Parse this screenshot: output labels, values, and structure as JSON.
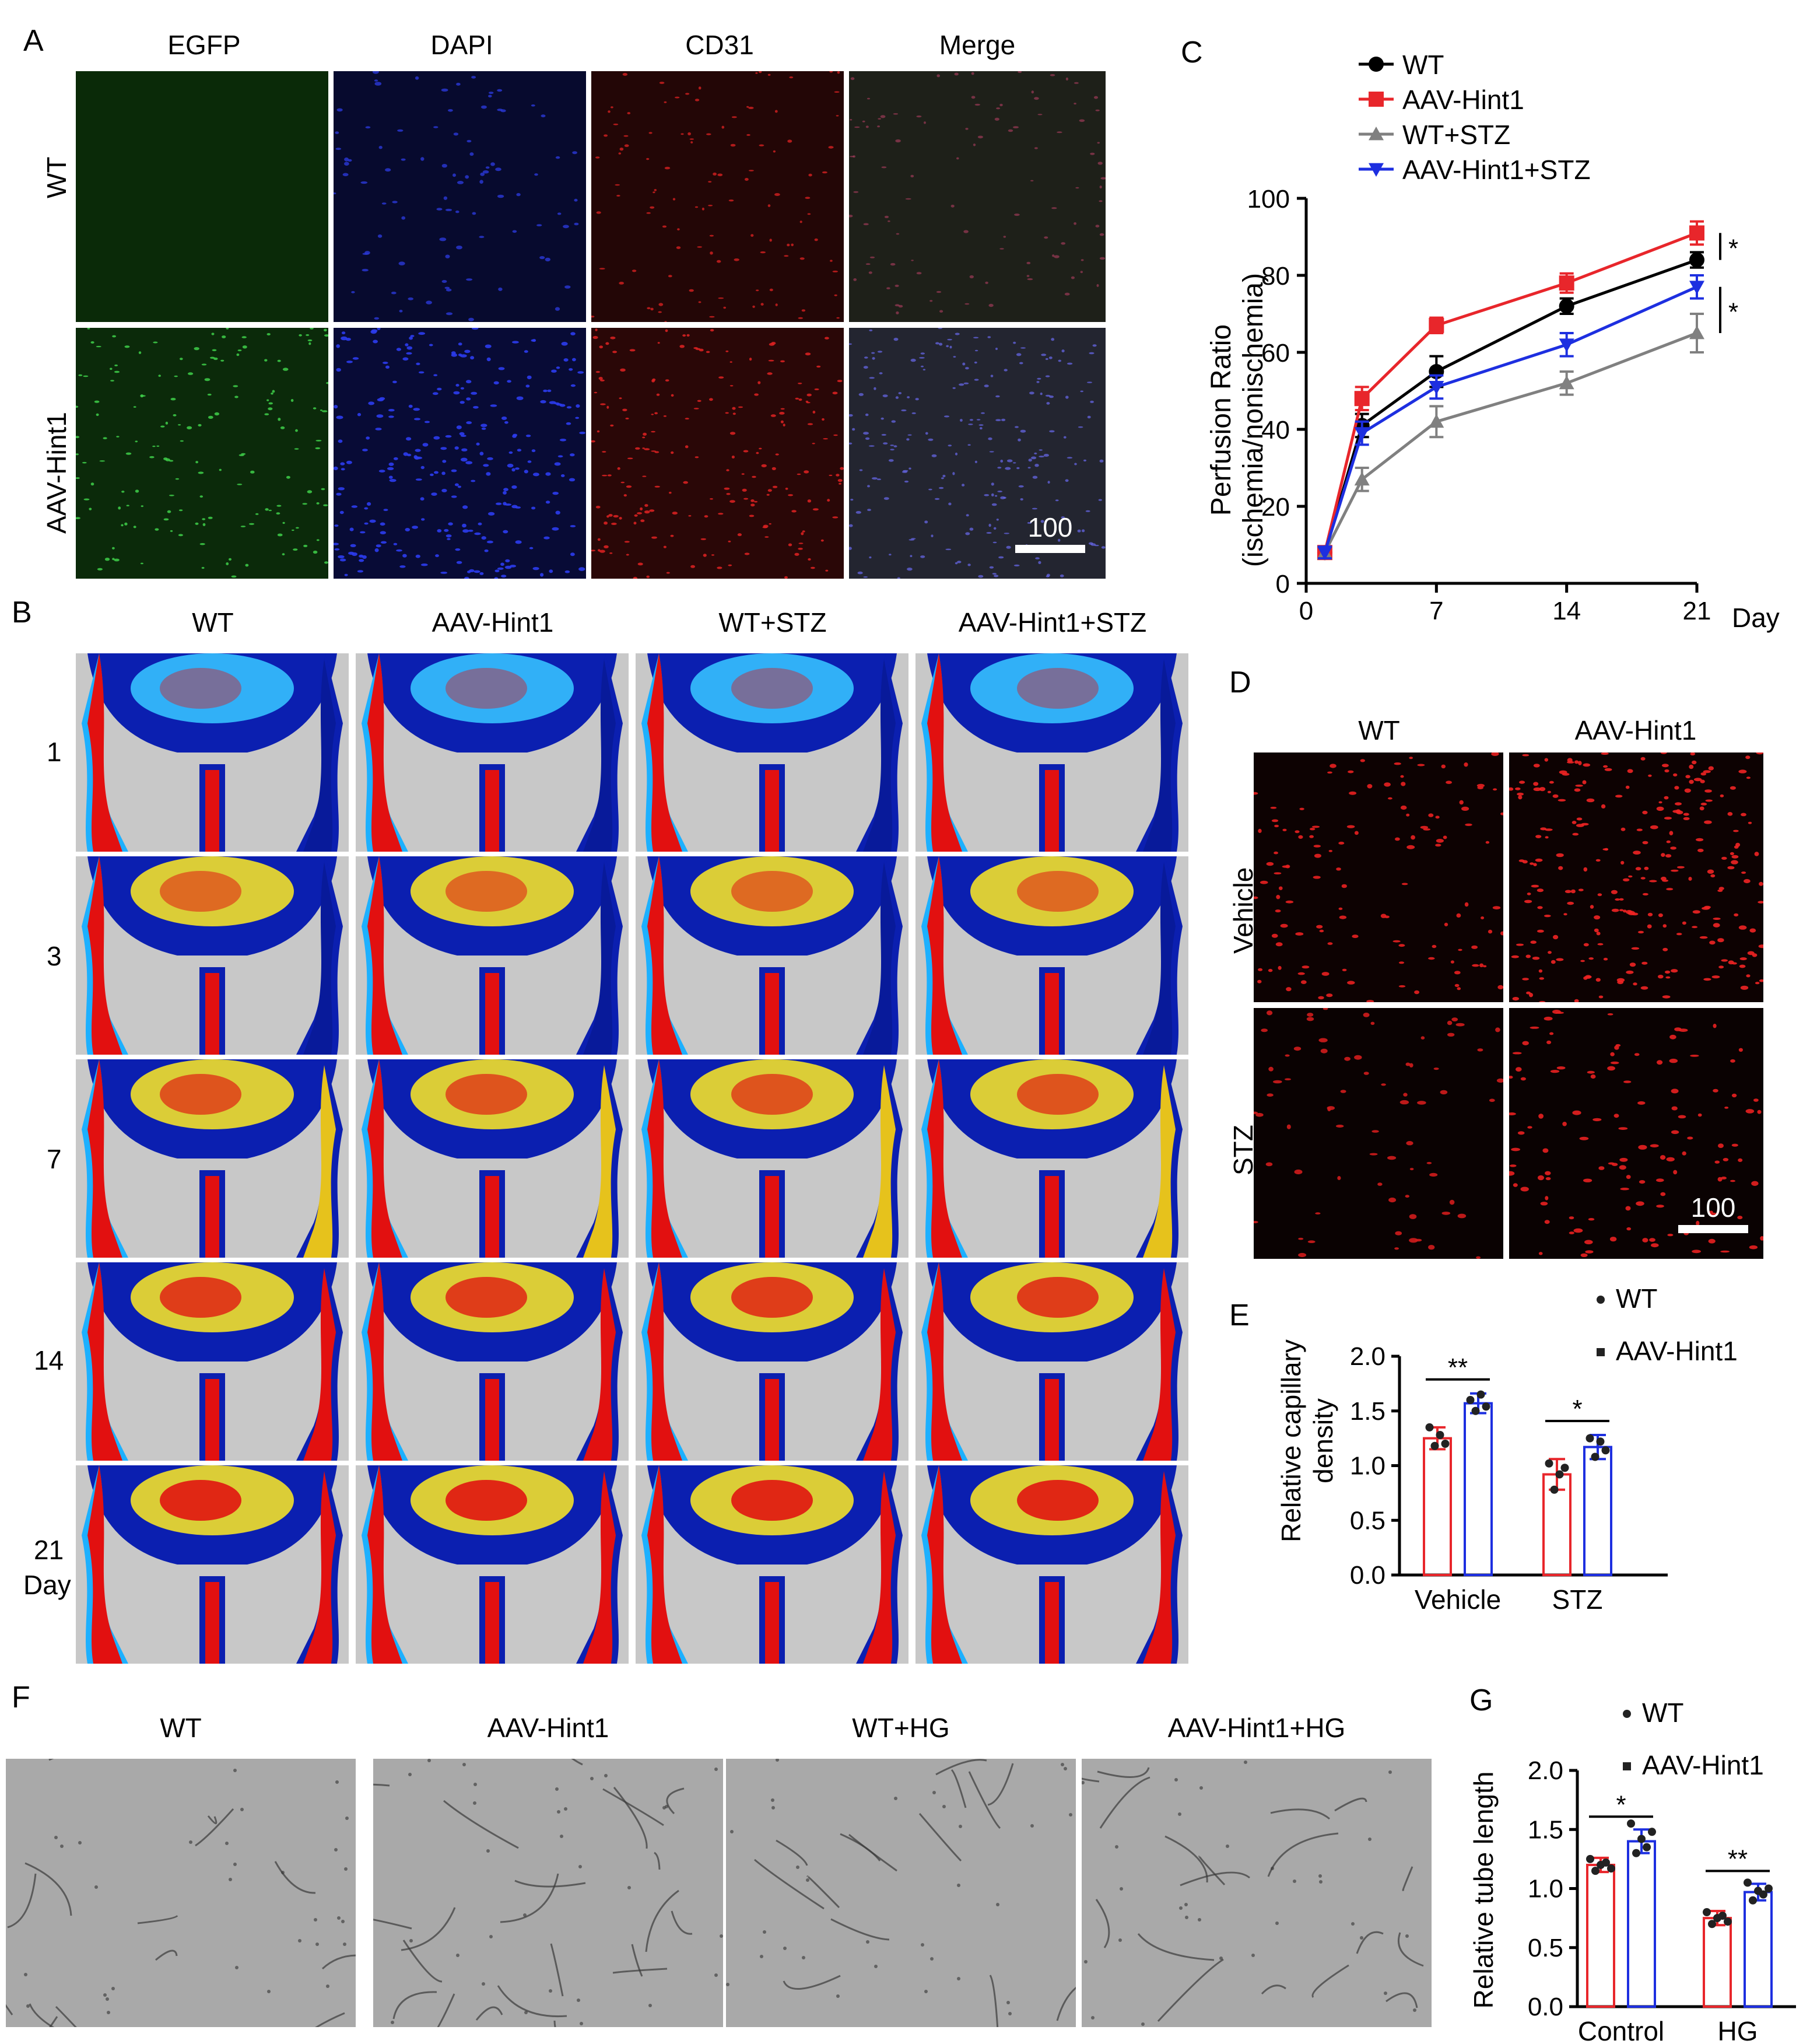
{
  "panels": {
    "a": "A",
    "b": "B",
    "c": "C",
    "d": "D",
    "e": "E",
    "f": "F",
    "g": "G"
  },
  "panel_a": {
    "columns": [
      "EGFP",
      "DAPI",
      "CD31",
      "Merge"
    ],
    "rows": [
      "WT",
      "AAV-Hint1"
    ],
    "scale_bar": "100",
    "colors": {
      "egfp": "#0a2a08",
      "dapi": "#070a2e",
      "cd31": "#230606",
      "merge": "#1c1c1c"
    }
  },
  "panel_b": {
    "columns": [
      "WT",
      "AAV-Hint1",
      "WT+STZ",
      "AAV-Hint1+STZ"
    ],
    "rows": [
      "1",
      "3",
      "7",
      "14",
      "21"
    ],
    "day_label": "Day"
  },
  "panel_d": {
    "columns": [
      "WT",
      "AAV-Hint1"
    ],
    "rows": [
      "Vehicle",
      "STZ"
    ],
    "scale_bar": "100"
  },
  "panel_f": {
    "columns": [
      "WT",
      "AAV-Hint1",
      "WT+HG",
      "AAV-Hint1+HG"
    ]
  },
  "chart_data": [
    {
      "id": "C",
      "type": "line",
      "ylabel": "Perfusion Ratio",
      "ylabel2": "(ischemia/nonischemia)",
      "xlabel": "Day",
      "x": [
        1,
        3,
        7,
        14,
        21
      ],
      "xticks": [
        "0",
        "7",
        "14",
        "21"
      ],
      "xtick_values": [
        0,
        7,
        14,
        21
      ],
      "yticks": [
        "0",
        "20",
        "40",
        "60",
        "80",
        "100"
      ],
      "ylim": [
        0,
        100
      ],
      "xlim": [
        0,
        21
      ],
      "series": [
        {
          "name": "WT",
          "color": "#000000",
          "marker": "circle",
          "values": [
            8,
            41,
            55,
            72,
            84
          ],
          "err": [
            1.5,
            3,
            4,
            2,
            2
          ]
        },
        {
          "name": "AAV-Hint1",
          "color": "#e8262b",
          "marker": "square",
          "values": [
            8,
            48,
            67,
            78,
            91
          ],
          "err": [
            1.5,
            3,
            2,
            2.5,
            3
          ]
        },
        {
          "name": "WT+STZ",
          "color": "#808080",
          "marker": "triangle-up",
          "values": [
            8,
            27,
            42,
            52,
            65
          ],
          "err": [
            1.5,
            3,
            4,
            3,
            5
          ]
        },
        {
          "name": "AAV-Hint1+STZ",
          "color": "#1d2fe0",
          "marker": "triangle-down",
          "values": [
            8,
            39,
            51,
            62,
            77
          ],
          "err": [
            1.5,
            3,
            3,
            3,
            3
          ]
        }
      ],
      "annotations": [
        "*",
        "*"
      ]
    },
    {
      "id": "E",
      "type": "bar",
      "ylabel": "Relative capillary",
      "ylabel2": "density",
      "categories": [
        "Vehicle",
        "STZ"
      ],
      "yticks": [
        "0.0",
        "0.5",
        "1.0",
        "1.5",
        "2.0"
      ],
      "ylim": [
        0,
        2.0
      ],
      "series": [
        {
          "name": "WT",
          "color": "#e8262b",
          "values": [
            1.25,
            0.92
          ],
          "err": [
            0.1,
            0.14
          ],
          "points": [
            [
              1.35,
              1.18,
              1.28,
              1.2
            ],
            [
              1.02,
              0.78,
              0.92,
              0.98
            ]
          ]
        },
        {
          "name": "AAV-Hint1",
          "color": "#1d2fe0",
          "values": [
            1.57,
            1.17
          ],
          "err": [
            0.09,
            0.11
          ],
          "points": [
            [
              1.6,
              1.5,
              1.65,
              1.54
            ],
            [
              1.25,
              1.08,
              1.22,
              1.14
            ]
          ]
        }
      ],
      "legend": [
        "WT",
        "AAV-Hint1"
      ],
      "significance": [
        "**",
        "*"
      ]
    },
    {
      "id": "G",
      "type": "bar",
      "ylabel": "Relative tube length",
      "categories": [
        "Control",
        "HG"
      ],
      "yticks": [
        "0.0",
        "0.5",
        "1.0",
        "1.5",
        "2.0"
      ],
      "ylim": [
        0,
        2.0
      ],
      "series": [
        {
          "name": "WT",
          "color": "#e8262b",
          "values": [
            1.2,
            0.75
          ],
          "err": [
            0.06,
            0.06
          ],
          "points": [
            [
              1.25,
              1.15,
              1.2,
              1.22,
              1.17
            ],
            [
              0.8,
              0.7,
              0.75,
              0.77,
              0.72
            ]
          ]
        },
        {
          "name": "AAV-Hint1",
          "color": "#1d2fe0",
          "values": [
            1.4,
            0.97
          ],
          "err": [
            0.1,
            0.07
          ],
          "points": [
            [
              1.55,
              1.3,
              1.42,
              1.35,
              1.48
            ],
            [
              1.05,
              0.9,
              0.98,
              0.95,
              1.0
            ]
          ]
        }
      ],
      "legend": [
        "WT",
        "AAV-Hint1"
      ],
      "significance": [
        "*",
        "**"
      ]
    }
  ]
}
